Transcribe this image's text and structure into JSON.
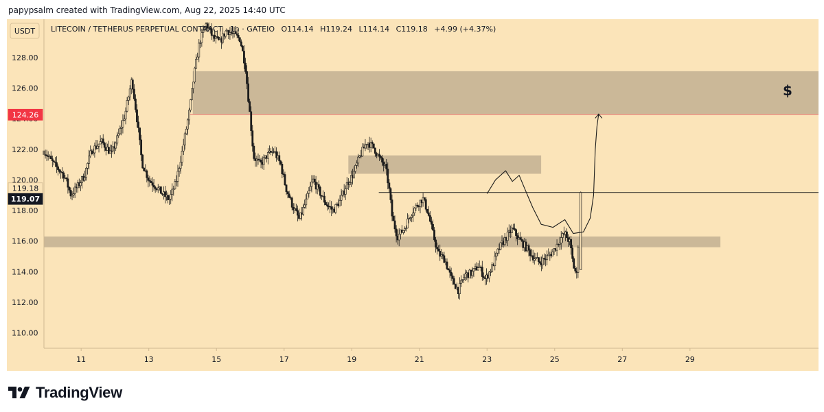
{
  "credit_text": "papypsalm created with TradingView.com, Aug 22, 2025 14:40 UTC",
  "brand": "TradingView",
  "colors": {
    "background": "#fbe4b9",
    "zone": "#c8b596",
    "candle": "#1c1c1c",
    "resistance_line": "#e8736e",
    "price_tag": "#f23645",
    "current_tag": "#131722"
  },
  "chart_data": {
    "type": "candlestick",
    "currency": "USDT",
    "title": "LITECOIN / TETHERUS PERPETUAL CONTRACT · 1h · GATEIO",
    "ohlc": {
      "o_label": "O",
      "o": "114.14",
      "h_label": "H",
      "h": "119.24",
      "l_label": "L",
      "l": "114.14",
      "c_label": "C",
      "c": "119.18",
      "change": "+4.99 (+4.37%)"
    },
    "x_ticks": [
      "11",
      "13",
      "15",
      "17",
      "19",
      "21",
      "23",
      "25",
      "27",
      "29"
    ],
    "x_tick_days": [
      11,
      13,
      15,
      17,
      19,
      21,
      23,
      25,
      27,
      29
    ],
    "x_range_days": [
      9.9,
      32.8
    ],
    "y_ticks": [
      "110.00",
      "112.00",
      "114.00",
      "116.00",
      "118.00",
      "120.00",
      "122.00",
      "124.00",
      "126.00",
      "128.00"
    ],
    "y_range": [
      109.0,
      130.5
    ],
    "price_tags": [
      {
        "label": "124.26",
        "value": 124.26
      },
      {
        "label": "119.18",
        "value": 119.18
      },
      {
        "label": "119.07",
        "value": 119.07
      }
    ],
    "zones": [
      {
        "name": "resistance-zone",
        "x_start_day": 14.3,
        "x_end_day": 32.8,
        "y_low": 124.3,
        "y_high": 127.1
      },
      {
        "name": "mid-zone",
        "x_start_day": 18.9,
        "x_end_day": 24.6,
        "y_low": 120.4,
        "y_high": 121.6
      },
      {
        "name": "support-zone",
        "x_start_day": 9.9,
        "x_end_day": 29.9,
        "y_low": 115.6,
        "y_high": 116.3
      }
    ],
    "horizontal_lines": [
      {
        "name": "resistance-line",
        "value": 124.26,
        "x_start_day": 14.2,
        "x_end_day": 32.8
      },
      {
        "name": "current-price-line",
        "value": 119.18,
        "x_start_day": 19.8,
        "x_end_day": 32.8
      }
    ],
    "annotation_symbol": "$",
    "projection_path": [
      [
        23.0,
        119.1
      ],
      [
        23.25,
        120.0
      ],
      [
        23.55,
        120.6
      ],
      [
        23.75,
        119.9
      ],
      [
        23.95,
        120.3
      ],
      [
        24.1,
        119.5
      ],
      [
        24.35,
        118.2
      ],
      [
        24.6,
        117.1
      ],
      [
        24.95,
        116.9
      ],
      [
        25.3,
        117.4
      ],
      [
        25.55,
        116.5
      ],
      [
        25.85,
        116.6
      ],
      [
        26.05,
        117.5
      ],
      [
        26.15,
        119.0
      ],
      [
        26.2,
        122.0
      ],
      [
        26.25,
        123.5
      ],
      [
        26.3,
        124.3
      ]
    ],
    "close_path": [
      [
        9.9,
        121.9
      ],
      [
        10.2,
        121.0
      ],
      [
        10.5,
        120.3
      ],
      [
        10.7,
        119.0
      ],
      [
        10.9,
        119.6
      ],
      [
        11.1,
        120.3
      ],
      [
        11.3,
        121.9
      ],
      [
        11.6,
        122.5
      ],
      [
        11.9,
        121.7
      ],
      [
        12.1,
        122.9
      ],
      [
        12.3,
        124.3
      ],
      [
        12.5,
        126.6
      ],
      [
        12.65,
        124.0
      ],
      [
        12.8,
        121.1
      ],
      [
        13.0,
        120.0
      ],
      [
        13.2,
        119.6
      ],
      [
        13.4,
        119.1
      ],
      [
        13.6,
        118.7
      ],
      [
        13.8,
        119.8
      ],
      [
        14.0,
        122.0
      ],
      [
        14.2,
        124.5
      ],
      [
        14.35,
        127.0
      ],
      [
        14.5,
        129.0
      ],
      [
        14.7,
        130.2
      ],
      [
        14.9,
        129.3
      ],
      [
        15.1,
        129.0
      ],
      [
        15.3,
        129.8
      ],
      [
        15.5,
        129.5
      ],
      [
        15.7,
        129.2
      ],
      [
        15.85,
        127.5
      ],
      [
        16.0,
        124.0
      ],
      [
        16.1,
        121.5
      ],
      [
        16.3,
        121.0
      ],
      [
        16.5,
        121.6
      ],
      [
        16.7,
        121.9
      ],
      [
        16.9,
        121.0
      ],
      [
        17.05,
        119.5
      ],
      [
        17.25,
        118.3
      ],
      [
        17.45,
        117.4
      ],
      [
        17.65,
        118.6
      ],
      [
        17.85,
        120.0
      ],
      [
        18.05,
        119.2
      ],
      [
        18.25,
        118.4
      ],
      [
        18.45,
        118.0
      ],
      [
        18.65,
        118.6
      ],
      [
        18.85,
        119.7
      ],
      [
        19.05,
        120.4
      ],
      [
        19.25,
        121.6
      ],
      [
        19.45,
        122.5
      ],
      [
        19.65,
        122.1
      ],
      [
        19.85,
        121.3
      ],
      [
        20.0,
        120.8
      ],
      [
        20.1,
        119.5
      ],
      [
        20.2,
        117.5
      ],
      [
        20.35,
        116.3
      ],
      [
        20.55,
        116.8
      ],
      [
        20.75,
        117.8
      ],
      [
        20.95,
        118.4
      ],
      [
        21.1,
        118.8
      ],
      [
        21.25,
        117.9
      ],
      [
        21.4,
        116.5
      ],
      [
        21.55,
        115.2
      ],
      [
        21.75,
        114.8
      ],
      [
        21.95,
        113.5
      ],
      [
        22.15,
        112.8
      ],
      [
        22.35,
        113.8
      ],
      [
        22.55,
        113.9
      ],
      [
        22.75,
        114.4
      ],
      [
        22.95,
        113.5
      ],
      [
        23.15,
        114.3
      ],
      [
        23.35,
        115.5
      ],
      [
        23.55,
        116.2
      ],
      [
        23.75,
        116.8
      ],
      [
        23.95,
        116.1
      ],
      [
        24.15,
        115.6
      ],
      [
        24.35,
        115.0
      ],
      [
        24.55,
        114.6
      ],
      [
        24.75,
        114.9
      ],
      [
        24.95,
        115.3
      ],
      [
        25.15,
        116.1
      ],
      [
        25.3,
        116.5
      ],
      [
        25.45,
        115.9
      ],
      [
        25.55,
        114.4
      ],
      [
        25.65,
        113.8
      ],
      [
        25.75,
        118.6
      ],
      [
        25.8,
        119.07
      ]
    ]
  }
}
